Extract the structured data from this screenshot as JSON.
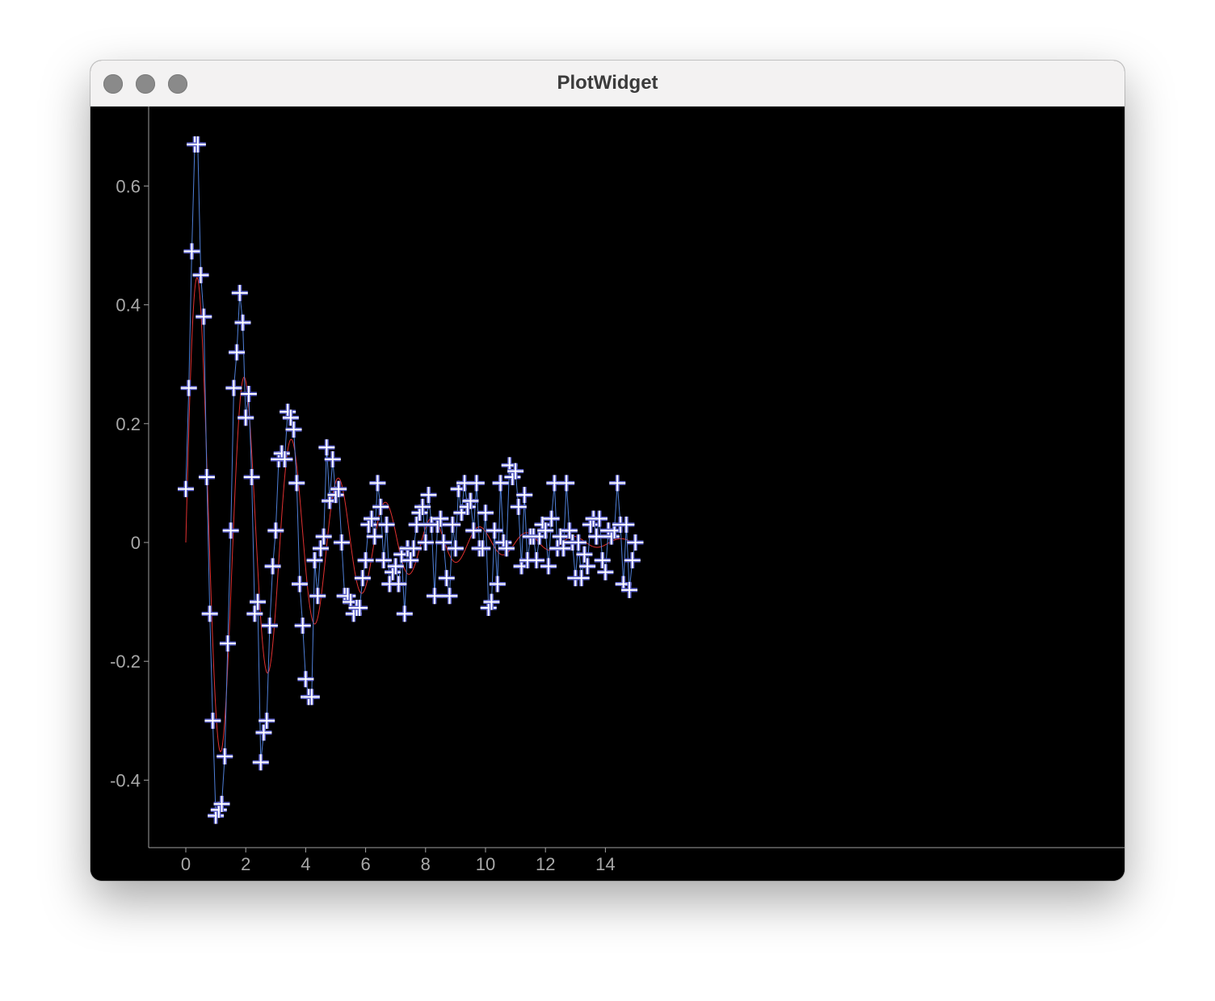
{
  "window": {
    "title": "PlotWidget",
    "buttons": [
      "close-button",
      "minimize-button",
      "zoom-button"
    ]
  },
  "colors": {
    "background": "#000000",
    "axis": "#a0a0a0",
    "data_line": "#4f7fd8",
    "marker": "#ffffff",
    "marker_outline": "#5a5fc8",
    "fit_curve": "#e03030"
  },
  "chart_data": {
    "type": "line",
    "x_ticks": [
      0,
      2,
      4,
      6,
      8,
      10,
      12,
      14
    ],
    "y_ticks": [
      -0.4,
      -0.2,
      0,
      0.2,
      0.4,
      0.6
    ],
    "y_tick_labels": [
      "-0.4",
      "-0.2",
      "0",
      "0.2",
      "0.4",
      "0.6"
    ],
    "x_tick_labels": [
      "0",
      "2",
      "4",
      "6",
      "8",
      "10",
      "12",
      "14"
    ],
    "xlim": [
      -0.6,
      15.5
    ],
    "ylim": [
      -0.52,
      0.73
    ],
    "grid": false,
    "series": [
      {
        "kind": "scatter-line",
        "marker": "cross",
        "x": [
          0,
          0.1,
          0.2,
          0.3,
          0.4,
          0.5,
          0.6,
          0.7,
          0.8,
          0.9,
          1.0,
          1.1,
          1.2,
          1.3,
          1.4,
          1.5,
          1.6,
          1.7,
          1.8,
          1.9,
          2.0,
          2.1,
          2.2,
          2.3,
          2.4,
          2.5,
          2.6,
          2.7,
          2.8,
          2.9,
          3.0,
          3.1,
          3.2,
          3.3,
          3.4,
          3.5,
          3.6,
          3.7,
          3.8,
          3.9,
          4.0,
          4.1,
          4.2,
          4.3,
          4.4,
          4.5,
          4.6,
          4.7,
          4.8,
          4.9,
          5.0,
          5.1,
          5.2,
          5.3,
          5.4,
          5.5,
          5.6,
          5.7,
          5.8,
          5.9,
          6.0,
          6.1,
          6.2,
          6.3,
          6.4,
          6.5,
          6.6,
          6.7,
          6.8,
          6.9,
          7.0,
          7.1,
          7.2,
          7.3,
          7.4,
          7.5,
          7.6,
          7.7,
          7.8,
          7.9,
          8.0,
          8.1,
          8.2,
          8.3,
          8.4,
          8.5,
          8.6,
          8.7,
          8.8,
          8.9,
          9.0,
          9.1,
          9.2,
          9.3,
          9.4,
          9.5,
          9.6,
          9.7,
          9.8,
          9.9,
          10.0,
          10.1,
          10.2,
          10.3,
          10.4,
          10.5,
          10.6,
          10.7,
          10.8,
          10.9,
          11.0,
          11.1,
          11.2,
          11.3,
          11.4,
          11.5,
          11.6,
          11.7,
          11.8,
          11.9,
          12.0,
          12.1,
          12.2,
          12.3,
          12.4,
          12.5,
          12.6,
          12.7,
          12.8,
          12.9,
          13.0,
          13.1,
          13.2,
          13.3,
          13.4,
          13.5,
          13.6,
          13.7,
          13.8,
          13.9,
          14.0,
          14.1,
          14.2,
          14.3,
          14.4,
          14.5,
          14.6,
          14.7,
          14.8,
          14.9,
          15.0
        ],
        "y": [
          0.09,
          0.26,
          0.49,
          0.67,
          0.67,
          0.45,
          0.38,
          0.11,
          -0.12,
          -0.3,
          -0.46,
          -0.45,
          -0.44,
          -0.36,
          -0.17,
          0.02,
          0.26,
          0.32,
          0.42,
          0.37,
          0.21,
          0.25,
          0.11,
          -0.12,
          -0.1,
          -0.37,
          -0.32,
          -0.3,
          -0.14,
          -0.04,
          0.02,
          0.14,
          0.15,
          0.14,
          0.22,
          0.21,
          0.19,
          0.1,
          -0.07,
          -0.14,
          -0.23,
          -0.26,
          -0.26,
          -0.03,
          -0.09,
          -0.01,
          0.01,
          0.16,
          0.07,
          0.14,
          0.08,
          0.09,
          0.0,
          -0.09,
          -0.09,
          -0.1,
          -0.12,
          -0.11,
          -0.11,
          -0.06,
          -0.03,
          0.03,
          0.04,
          0.01,
          0.1,
          0.06,
          -0.03,
          0.03,
          -0.07,
          -0.05,
          -0.04,
          -0.07,
          -0.02,
          -0.12,
          -0.01,
          -0.03,
          -0.01,
          0.03,
          0.05,
          0.06,
          0.0,
          0.08,
          0.03,
          -0.09,
          0.03,
          0.04,
          0.0,
          -0.06,
          -0.09,
          0.03,
          -0.01,
          0.09,
          0.05,
          0.1,
          0.06,
          0.07,
          0.02,
          0.1,
          -0.01,
          -0.01,
          0.05,
          -0.11,
          -0.1,
          0.02,
          -0.07,
          0.1,
          0.0,
          -0.01,
          0.13,
          0.11,
          0.12,
          0.06,
          -0.04,
          0.08,
          -0.03,
          0.01,
          0.01,
          -0.03,
          0.01,
          0.03,
          0.02,
          -0.04,
          0.04,
          0.1,
          -0.01,
          0.01,
          -0.01,
          0.1,
          0.02,
          0.0,
          -0.06,
          0.0,
          -0.06,
          -0.02,
          -0.04,
          0.03,
          0.04,
          0.01,
          0.04,
          -0.03,
          -0.05,
          0.02,
          0.01,
          0.02,
          0.1,
          0.03,
          -0.07,
          0.03,
          -0.08,
          -0.03,
          0.0
        ]
      },
      {
        "kind": "curve",
        "function": "damped-sine",
        "amplitude": 0.5,
        "decay": 0.3,
        "omega": 4.0,
        "x_range": [
          0,
          15
        ]
      }
    ]
  }
}
